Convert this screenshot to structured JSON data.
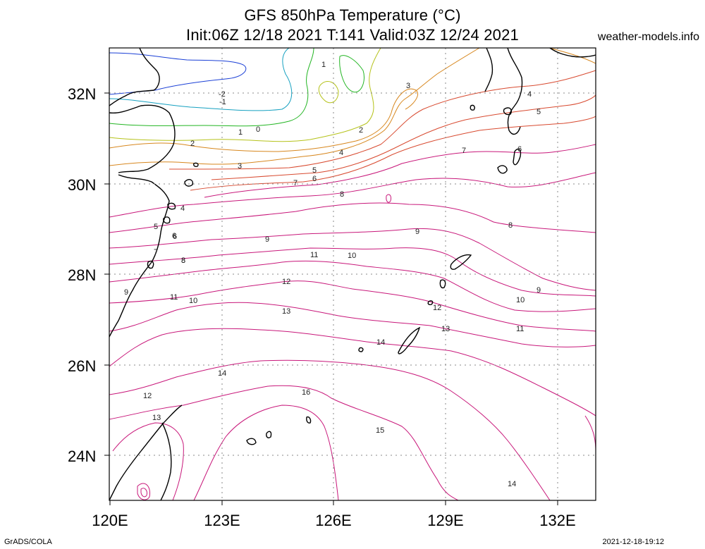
{
  "title_line1": "GFS 850hPa Temperature (°C)",
  "title_line2": "Init:06Z 12/18 2021 T:141 Valid:03Z 12/24 2021",
  "site": "weather-models.info",
  "footer_left": "GrADS/COLA",
  "footer_right": "2021-12-18-19:12",
  "lat_ticks": [
    "32N",
    "30N",
    "28N",
    "26N",
    "24N"
  ],
  "lon_ticks": [
    "120E",
    "123E",
    "126E",
    "129E",
    "132E"
  ],
  "contour_labels": [
    "1",
    "3",
    "-2",
    "-1",
    "4",
    "5",
    "1",
    "0",
    "2",
    "6",
    "2",
    "7",
    "3",
    "6",
    "5",
    "4",
    "8",
    "7",
    "4",
    "6",
    "5",
    "8",
    "9",
    "9",
    "8",
    "6",
    "7",
    "8",
    "11",
    "10",
    "9",
    "12",
    "10",
    "9",
    "11",
    "10",
    "12",
    "13",
    "11",
    "13",
    "14",
    "14",
    "12",
    "16",
    "13",
    "15",
    "14"
  ],
  "colors": {
    "frame": "#000000",
    "coast": "#000000",
    "grid": "#888888",
    "contour_cold": "#1a3fd6",
    "contour_cool": "#15a0c0",
    "contour_green": "#22b522",
    "contour_yellow": "#b5c21a",
    "contour_orange": "#d7871e",
    "contour_red": "#d84a30",
    "contour_magenta": "#c8177a"
  }
}
